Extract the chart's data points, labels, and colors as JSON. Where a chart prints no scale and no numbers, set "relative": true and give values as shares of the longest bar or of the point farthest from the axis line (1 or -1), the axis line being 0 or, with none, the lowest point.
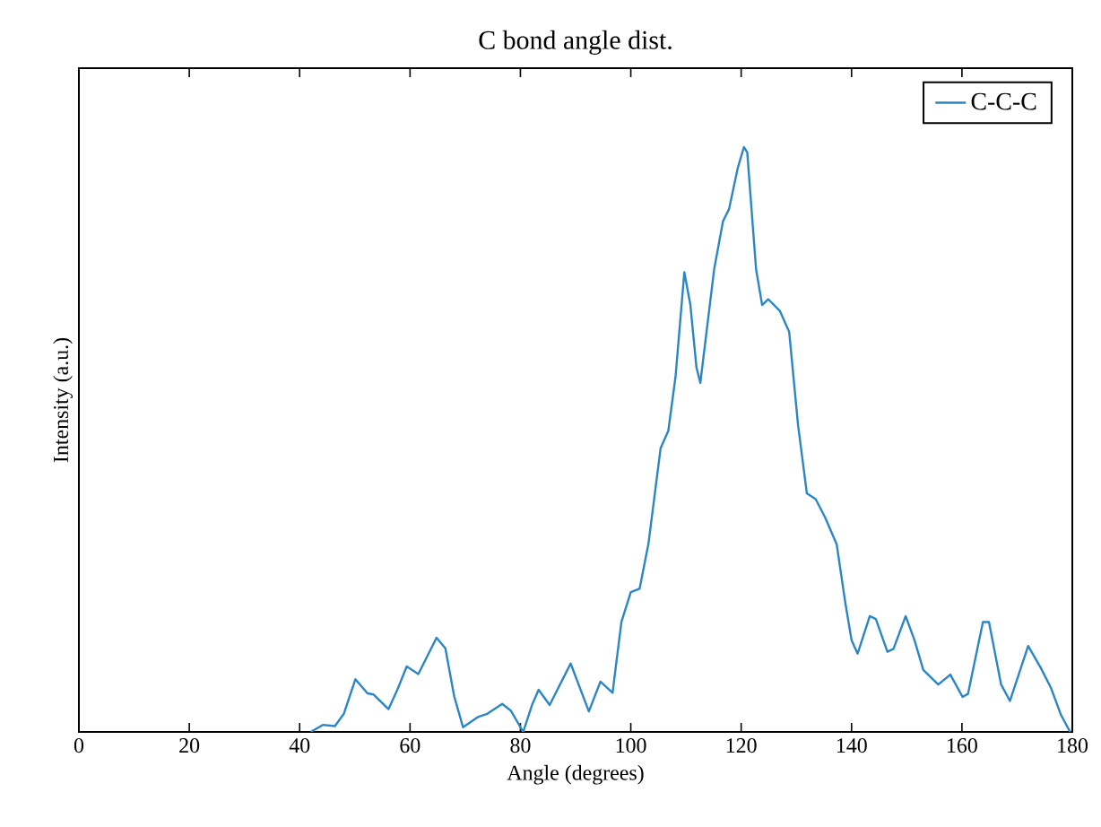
{
  "chart_data": {
    "type": "line",
    "title": "C bond angle dist.",
    "xlabel": "Angle (degrees)",
    "ylabel": "Intensity (a.u.)",
    "relative": true,
    "xlim": [
      0,
      180
    ],
    "xticks": [
      0,
      20,
      40,
      60,
      80,
      100,
      120,
      140,
      160,
      180
    ],
    "legend": "top right",
    "series": [
      {
        "name": "C-C-C",
        "color": "#2b86c5",
        "x": [
          42.0,
          44.2,
          46.4,
          48.0,
          50.1,
          52.3,
          53.4,
          56.1,
          57.7,
          59.4,
          61.5,
          64.8,
          66.4,
          68.0,
          69.6,
          72.4,
          74.0,
          76.7,
          78.3,
          80.5,
          82.1,
          83.3,
          85.3,
          89.1,
          92.4,
          94.5,
          96.7,
          98.3,
          100.0,
          101.6,
          103.2,
          105.4,
          106.8,
          108.1,
          109.7,
          110.8,
          111.9,
          112.6,
          115.1,
          116.7,
          117.8,
          119.4,
          120.5,
          121.1,
          122.7,
          123.8,
          124.9,
          127.0,
          128.7,
          130.3,
          131.9,
          133.5,
          135.2,
          137.3,
          138.9,
          140.0,
          141.1,
          143.3,
          144.4,
          146.5,
          147.6,
          149.8,
          151.4,
          153.0,
          155.7,
          157.9,
          160.1,
          161.1,
          163.8,
          164.9,
          167.1,
          168.7,
          172.0,
          174.2,
          176.1,
          177.9,
          179.6
        ],
        "values": [
          0,
          0.012,
          0.01,
          0.031,
          0.09,
          0.066,
          0.064,
          0.039,
          0.072,
          0.112,
          0.099,
          0.161,
          0.143,
          0.061,
          0.008,
          0.026,
          0.031,
          0.048,
          0.036,
          0,
          0.046,
          0.072,
          0.046,
          0.117,
          0.035,
          0.086,
          0.067,
          0.188,
          0.239,
          0.245,
          0.322,
          0.485,
          0.515,
          0.607,
          0.786,
          0.73,
          0.623,
          0.597,
          0.791,
          0.873,
          0.894,
          0.965,
          1,
          0.991,
          0.791,
          0.73,
          0.74,
          0.72,
          0.684,
          0.525,
          0.408,
          0.398,
          0.367,
          0.321,
          0.219,
          0.157,
          0.134,
          0.198,
          0.193,
          0.137,
          0.142,
          0.198,
          0.157,
          0.106,
          0.081,
          0.098,
          0.06,
          0.065,
          0.188,
          0.188,
          0.081,
          0.053,
          0.147,
          0.111,
          0.076,
          0.03,
          0
        ]
      }
    ]
  }
}
